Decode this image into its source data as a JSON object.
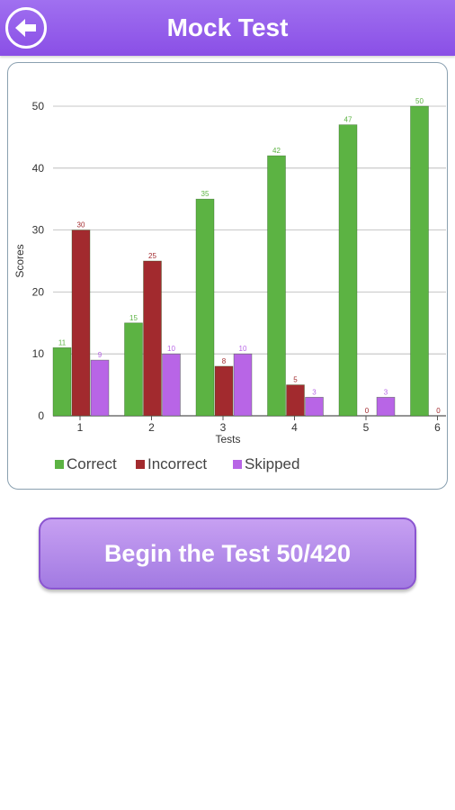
{
  "header": {
    "title": "Mock Test",
    "back_icon": "arrow-left-icon"
  },
  "action": {
    "label": "Begin the Test 50/420"
  },
  "colors": {
    "correct": "#5cb343",
    "incorrect": "#a22a2e",
    "skipped": "#b865e6",
    "header": "#9a62ee"
  },
  "chart_data": {
    "type": "bar",
    "xlabel": "Tests",
    "ylabel": "Scores",
    "categories": [
      "1",
      "2",
      "3",
      "4",
      "5",
      "6"
    ],
    "ylim": [
      0,
      50
    ],
    "yticks": [
      0,
      10,
      20,
      30,
      40,
      50
    ],
    "grid": true,
    "legend": "bottom",
    "series": [
      {
        "name": "Correct",
        "values": [
          11,
          15,
          35,
          42,
          47,
          50
        ]
      },
      {
        "name": "Incorrect",
        "values": [
          30,
          25,
          8,
          5,
          0,
          0
        ]
      },
      {
        "name": "Skipped",
        "values": [
          9,
          10,
          10,
          3,
          3,
          0
        ]
      }
    ]
  }
}
